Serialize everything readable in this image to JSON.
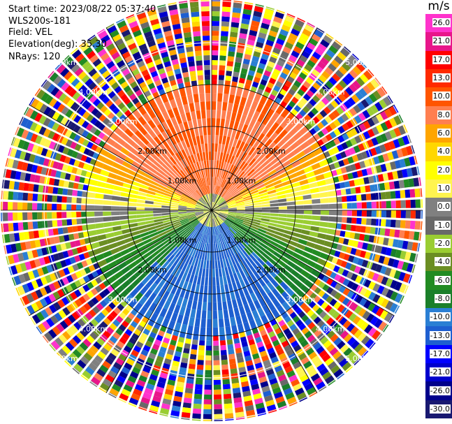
{
  "info": {
    "start_time": "Start time: 2023/08/22 05:37:40",
    "station": "WLS200s-181",
    "field": "Field: VEL",
    "elevation": "Elevation(deg): 35.30",
    "nrays": "NRays: 120"
  },
  "colorbar": {
    "unit": "m/s",
    "ticks": [
      "26.0",
      "21.0",
      "17.0",
      "13.0",
      "10.0",
      "8.0",
      "6.0",
      "4.0",
      "2.0",
      "1.0",
      "0.0",
      "-1.0",
      "-2.0",
      "-4.0",
      "-6.0",
      "-8.0",
      "-10.0",
      "-13.0",
      "-17.0",
      "-21.0",
      "-26.0",
      "-30.0"
    ],
    "colors": [
      "#ff33cc",
      "#e8168a",
      "#ff0000",
      "#ff2a00",
      "#ff5500",
      "#ff7f50",
      "#ffa500",
      "#ffd700",
      "#ffff00",
      "#fff44f",
      "#808080",
      "#696969",
      "#9acd32",
      "#6b8e23",
      "#228b22",
      "#1a7f2a",
      "#2a7fd4",
      "#1e5fd0",
      "#0000ff",
      "#0000cd",
      "#00008b",
      "#191970"
    ]
  },
  "range_labels": [
    "1.00km",
    "2.00km",
    "3.00km",
    "4.00km",
    "5.00km"
  ],
  "chart_data": {
    "type": "heatmap",
    "projection": "polar PPI",
    "field": "VEL",
    "unit": "m/s",
    "n_rays": 120,
    "elevation_deg": 35.3,
    "range_rings_km": [
      1,
      2,
      3,
      4,
      5
    ],
    "max_range_km": 5,
    "colorbar_bounds": [
      26.0,
      21.0,
      17.0,
      13.0,
      10.0,
      8.0,
      6.0,
      4.0,
      2.0,
      1.0,
      0.0,
      -1.0,
      -2.0,
      -4.0,
      -6.0,
      -8.0,
      -10.0,
      -13.0,
      -17.0,
      -21.0,
      -26.0,
      -30.0
    ],
    "pattern": "coherent positive velocities (orange/red) to the north, near-zero (yellow/grey) along east–west, negative (green to blue) to the south within ~3 km; noisy beyond 3 km"
  }
}
